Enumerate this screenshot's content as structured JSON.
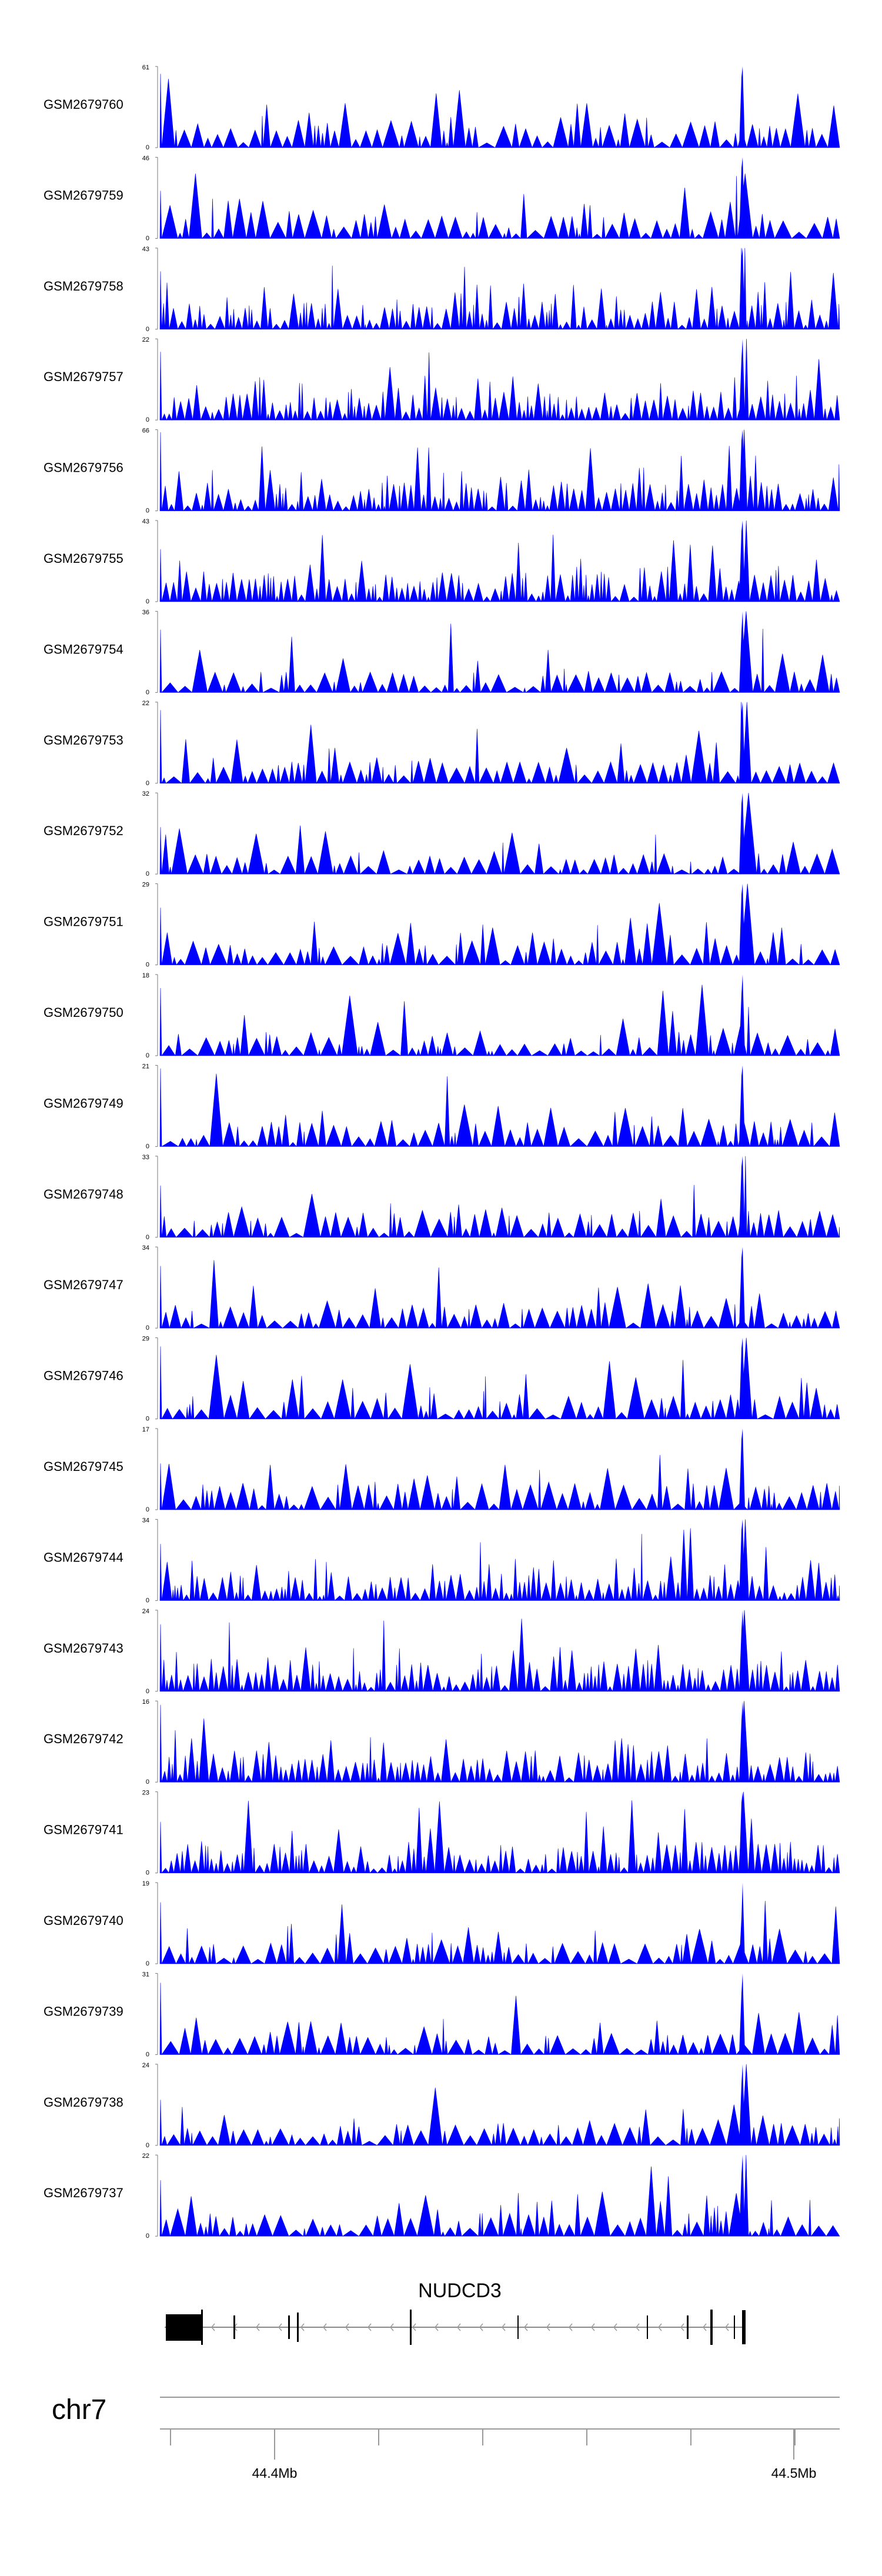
{
  "chart_data": {
    "type": "area",
    "description_style": "genome browser coverage tracks",
    "color": "#0000FF",
    "chromosome": "chr7",
    "x_ticks": [
      {
        "label": "44.4Mb",
        "value_mb": 44.4
      },
      {
        "label": "44.5Mb",
        "value_mb": 44.5
      }
    ],
    "gene": {
      "name": "NUDCD3",
      "strand": "-"
    },
    "tracks": [
      {
        "name": "GSM2679760",
        "ymax": 61,
        "ymin": 0,
        "peak_fraction": 0.87
      },
      {
        "name": "GSM2679759",
        "ymax": 46,
        "ymin": 0,
        "peak_fraction": 0.87
      },
      {
        "name": "GSM2679758",
        "ymax": 43,
        "ymin": 0,
        "peak_fraction": 0.87
      },
      {
        "name": "GSM2679757",
        "ymax": 22,
        "ymin": 0,
        "peak_fraction": 0.76
      },
      {
        "name": "GSM2679756",
        "ymax": 66,
        "ymin": 0,
        "peak_fraction": 0.87
      },
      {
        "name": "GSM2679755",
        "ymax": 43,
        "ymin": 0,
        "peak_fraction": 0.87
      },
      {
        "name": "GSM2679754",
        "ymax": 36,
        "ymin": 0,
        "peak_fraction": 0.76
      },
      {
        "name": "GSM2679753",
        "ymax": 22,
        "ymin": 0,
        "peak_fraction": 0.87
      },
      {
        "name": "GSM2679752",
        "ymax": 32,
        "ymin": 0,
        "peak_fraction": 0.87
      },
      {
        "name": "GSM2679751",
        "ymax": 29,
        "ymin": 0,
        "peak_fraction": 0.87
      },
      {
        "name": "GSM2679750",
        "ymax": 18,
        "ymin": 0,
        "peak_fraction": 0.76
      },
      {
        "name": "GSM2679749",
        "ymax": 21,
        "ymin": 0,
        "peak_fraction": 0.87
      },
      {
        "name": "GSM2679748",
        "ymax": 33,
        "ymin": 0,
        "peak_fraction": 0.87
      },
      {
        "name": "GSM2679747",
        "ymax": 34,
        "ymin": 0,
        "peak_fraction": 0.87
      },
      {
        "name": "GSM2679746",
        "ymax": 29,
        "ymin": 0,
        "peak_fraction": 0.87
      },
      {
        "name": "GSM2679745",
        "ymax": 17,
        "ymin": 0,
        "peak_fraction": 0.87
      },
      {
        "name": "GSM2679744",
        "ymax": 34,
        "ymin": 0,
        "peak_fraction": 0.87
      },
      {
        "name": "GSM2679743",
        "ymax": 24,
        "ymin": 0,
        "peak_fraction": 0.76
      },
      {
        "name": "GSM2679742",
        "ymax": 16,
        "ymin": 0,
        "peak_fraction": 0.76
      },
      {
        "name": "GSM2679741",
        "ymax": 23,
        "ymin": 0,
        "peak_fraction": 0.87
      },
      {
        "name": "GSM2679740",
        "ymax": 19,
        "ymin": 0,
        "peak_fraction": 0.57
      },
      {
        "name": "GSM2679739",
        "ymax": 31,
        "ymin": 0,
        "peak_fraction": 0.76
      },
      {
        "name": "GSM2679738",
        "ymax": 24,
        "ymin": 0,
        "peak_fraction": 0.76
      },
      {
        "name": "GSM2679737",
        "ymax": 22,
        "ymin": 0,
        "peak_fraction": 0.76
      }
    ]
  }
}
